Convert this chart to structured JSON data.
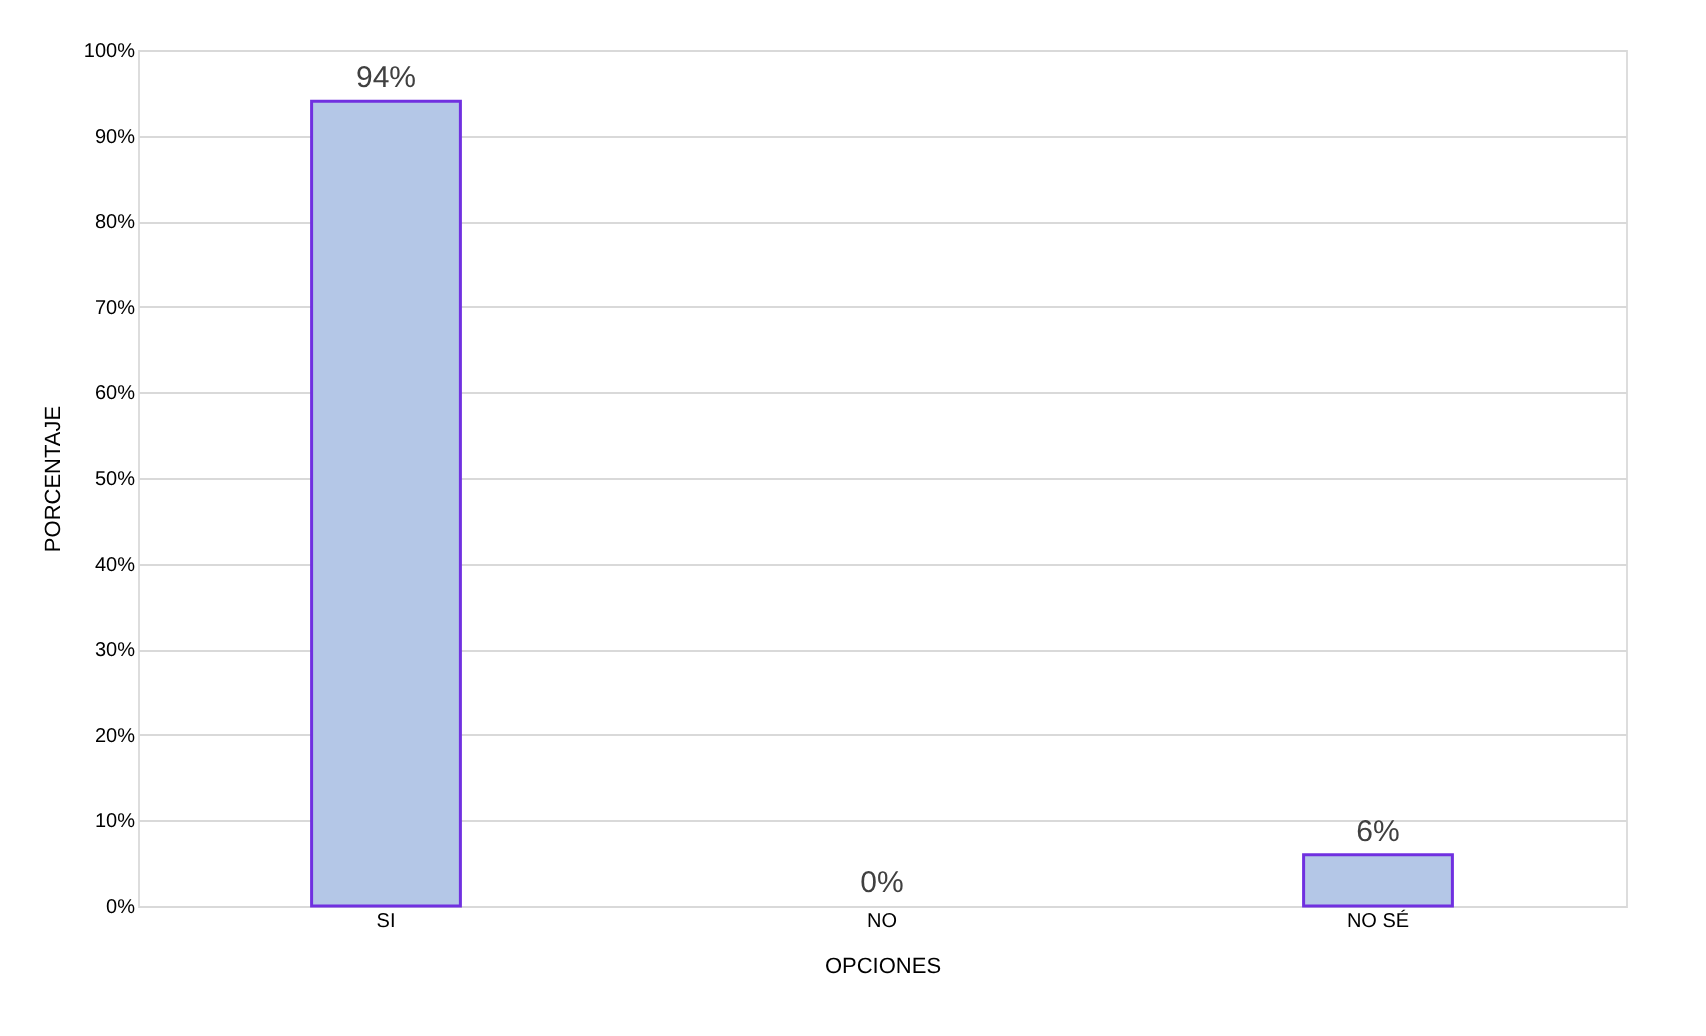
{
  "chart_data": {
    "type": "bar",
    "xlabel": "OPCIONES",
    "ylabel": "PORCENTAJE",
    "categories": [
      "SI",
      "NO",
      "NO SÉ"
    ],
    "values": [
      94,
      0,
      6
    ],
    "value_labels": [
      "94%",
      "0%",
      "6%"
    ],
    "color": "#b4c7e7",
    "ylim": [
      0,
      100
    ],
    "yticks": [
      {
        "value": 0,
        "label": "0%"
      },
      {
        "value": 10,
        "label": "10%"
      },
      {
        "value": 20,
        "label": "20%"
      },
      {
        "value": 30,
        "label": "30%"
      },
      {
        "value": 40,
        "label": "40%"
      },
      {
        "value": 50,
        "label": "50%"
      },
      {
        "value": 60,
        "label": "60%"
      },
      {
        "value": 70,
        "label": "70%"
      },
      {
        "value": 80,
        "label": "80%"
      },
      {
        "value": 90,
        "label": "90%"
      },
      {
        "value": 100,
        "label": "100%"
      }
    ],
    "grid": "y"
  }
}
